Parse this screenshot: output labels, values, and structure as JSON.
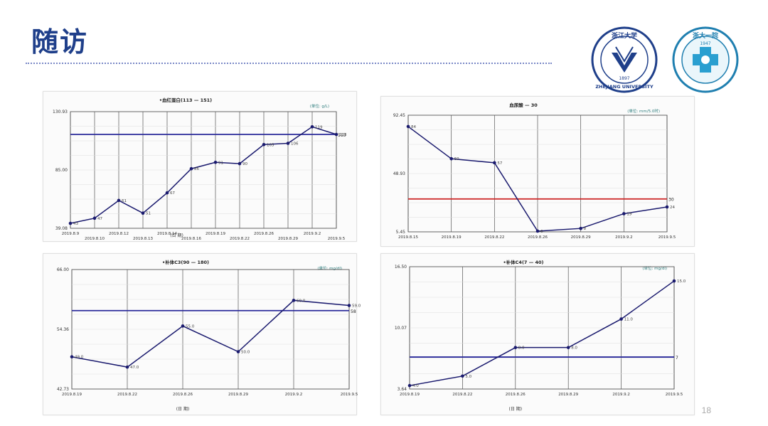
{
  "slide": {
    "title": "随访",
    "page_number": "18",
    "logo_left": {
      "text_top": "浙江大学",
      "year": "1897",
      "text_bottom": "ZHEJIANG UNIVERSITY"
    },
    "logo_right": {
      "text_top": "浙大一院",
      "year": "1947"
    }
  },
  "colors": {
    "title": "#1f3f8a",
    "series": "#1a1a6e",
    "ref_blue": "#2a2a9a",
    "ref_red": "#cc2222",
    "grid": "#555555",
    "unit": "#2e7d7d"
  },
  "chart_data": [
    {
      "type": "line",
      "title": "•血红蛋白(113 — 151)",
      "unit": "(单位: g/L)",
      "xlabel": "(日 期)",
      "ylim": [
        39.08,
        130.93
      ],
      "y_ticks": [
        "39.08",
        "85.00",
        "130.93"
      ],
      "x_tick_labels": [
        "2019.8.9",
        "2019.8.10",
        "2019.8.12",
        "2019.8.13",
        "2019.8.14",
        "2019.8.16",
        "2019.8.19",
        "2019.8.22",
        "2019.8.26",
        "2019.8.29",
        "2019.9.2",
        "2019.9.5"
      ],
      "label_stagger": true,
      "x_index": [
        0,
        1,
        2,
        3,
        4,
        5,
        6,
        7,
        8,
        9,
        10,
        11
      ],
      "values": [
        43,
        47,
        61,
        51,
        67,
        86,
        91,
        90,
        105,
        106,
        119,
        113
      ],
      "point_labels": [
        "43",
        "47",
        "61",
        "51",
        "67",
        "86",
        "91",
        "90",
        "105",
        "106",
        "119",
        "113"
      ],
      "ref_lines": [
        {
          "value": 113,
          "color": "blue",
          "label": "113"
        }
      ]
    },
    {
      "type": "line",
      "title": "血尿酸 — 30",
      "unit": "(单位: mm/5.0时)",
      "xlabel": "",
      "ylim": [
        5.45,
        92.45
      ],
      "y_ticks": [
        "5.45",
        "48.93",
        "92.45"
      ],
      "x_tick_labels": [
        "2019.8.15",
        "2019.8.19",
        "2019.8.22",
        "2019.8.26",
        "2019.8.29",
        "2019.9.2",
        "2019.9.5"
      ],
      "label_stagger": false,
      "x_index": [
        0,
        1,
        2,
        3,
        4,
        5,
        6
      ],
      "values": [
        84,
        60,
        57,
        6,
        8,
        19,
        24
      ],
      "point_labels": [
        "84",
        "60",
        "57",
        "6",
        "8",
        "19",
        "24"
      ],
      "ref_lines": [
        {
          "value": 30,
          "color": "red",
          "label": "30"
        }
      ]
    },
    {
      "type": "line",
      "title": "•补体C3(90 — 180)",
      "unit": "(单位: mg/dl)",
      "xlabel": "(日 期)",
      "ylim": [
        42.73,
        66.0
      ],
      "y_ticks": [
        "42.73",
        "54.36",
        "66.00"
      ],
      "x_tick_labels": [
        "2019.8.19",
        "2019.8.22",
        "2019.8.26",
        "2019.8.29",
        "2019.9.2",
        "2019.9.5"
      ],
      "label_stagger": false,
      "x_index": [
        0,
        1,
        2,
        3,
        4,
        5
      ],
      "values": [
        49.0,
        47.0,
        55.0,
        50.0,
        60.0,
        59.0
      ],
      "point_labels": [
        "49.0",
        "47.0",
        "55.0",
        "50.0",
        "60.0",
        "59.0"
      ],
      "ref_lines": [
        {
          "value": 58,
          "color": "blue",
          "label": "58"
        }
      ]
    },
    {
      "type": "line",
      "title": "•补体C4(7 — 40)",
      "unit": "(单位: mg/dl)",
      "xlabel": "(日 期)",
      "ylim": [
        3.64,
        16.5
      ],
      "y_ticks": [
        "3.64",
        "10.07",
        "16.50"
      ],
      "x_tick_labels": [
        "2019.8.19",
        "2019.8.22",
        "2019.8.26",
        "2019.8.29",
        "2019.9.2",
        "2019.9.5"
      ],
      "label_stagger": false,
      "x_index": [
        0,
        1,
        2,
        3,
        4,
        5
      ],
      "values": [
        4.0,
        5.0,
        8.0,
        8.0,
        11.0,
        15.0
      ],
      "point_labels": [
        "4.0",
        "5.0",
        "8.0",
        "8.0",
        "11.0",
        "15.0"
      ],
      "ref_lines": [
        {
          "value": 7,
          "color": "blue",
          "label": "7"
        }
      ]
    }
  ]
}
